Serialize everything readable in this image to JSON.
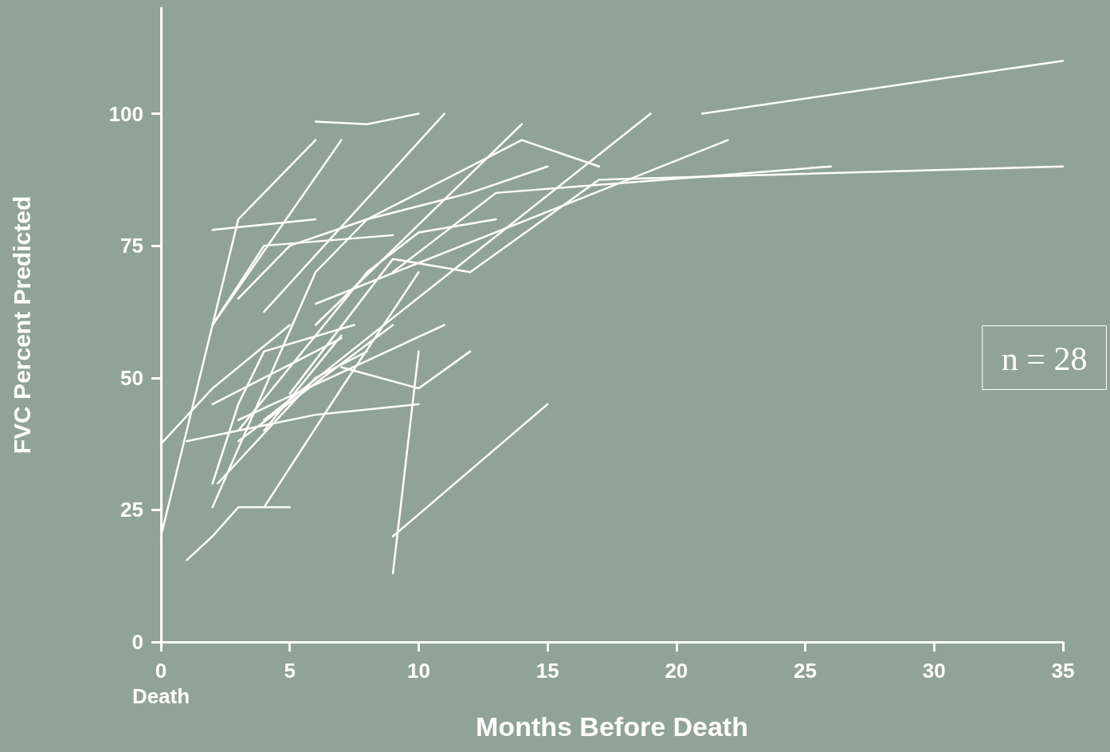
{
  "chart_data": {
    "type": "line",
    "xlabel": "Months Before Death",
    "ylabel": "FVC Percent Predicted",
    "annotations": [
      "n = 28"
    ],
    "xlim": [
      0,
      35
    ],
    "ylim": [
      0,
      120
    ],
    "xticks": [
      {
        "value": 0,
        "label": "0\nDeath"
      },
      5,
      10,
      15,
      20,
      25,
      30,
      35
    ],
    "yticks": [
      0,
      25,
      50,
      75,
      100
    ],
    "marker": "none",
    "line_style": "solid",
    "series": [
      {
        "color": "#ffffff",
        "x": [
          21,
          35
        ],
        "values": [
          100,
          110
        ]
      },
      {
        "color": "#ffffff",
        "x": [
          0,
          2,
          5
        ],
        "values": [
          37.5,
          48,
          60
        ]
      },
      {
        "color": "#ffffff",
        "x": [
          0,
          2,
          3,
          6
        ],
        "values": [
          20,
          60,
          80,
          95
        ]
      },
      {
        "color": "#ffffff",
        "x": [
          2,
          6
        ],
        "values": [
          78,
          80
        ]
      },
      {
        "color": "#ffffff",
        "x": [
          2,
          7
        ],
        "values": [
          60,
          95
        ]
      },
      {
        "color": "#ffffff",
        "x": [
          2,
          4,
          9
        ],
        "values": [
          60,
          75,
          77
        ]
      },
      {
        "color": "#ffffff",
        "x": [
          3,
          5,
          8,
          14,
          17
        ],
        "values": [
          65,
          75,
          80,
          95,
          90
        ]
      },
      {
        "color": "#ffffff",
        "x": [
          4,
          11
        ],
        "values": [
          62.5,
          100
        ]
      },
      {
        "color": "#ffffff",
        "x": [
          6,
          8,
          10
        ],
        "values": [
          98.5,
          98,
          100
        ]
      },
      {
        "color": "#ffffff",
        "x": [
          1,
          2,
          3,
          5
        ],
        "values": [
          15.5,
          20,
          25.5,
          25.5
        ]
      },
      {
        "color": "#ffffff",
        "x": [
          4,
          7,
          10
        ],
        "values": [
          25.5,
          48,
          70
        ]
      },
      {
        "color": "#ffffff",
        "x": [
          1,
          3,
          6,
          10
        ],
        "values": [
          38,
          40,
          43,
          45
        ]
      },
      {
        "color": "#ffffff",
        "x": [
          9,
          10
        ],
        "values": [
          13,
          55
        ]
      },
      {
        "color": "#ffffff",
        "x": [
          9,
          15
        ],
        "values": [
          20,
          45
        ]
      },
      {
        "color": "#ffffff",
        "x": [
          7,
          10,
          12
        ],
        "values": [
          52,
          48,
          55
        ]
      },
      {
        "color": "#ffffff",
        "x": [
          2,
          7
        ],
        "values": [
          45,
          57.5
        ]
      },
      {
        "color": "#ffffff",
        "x": [
          2,
          3,
          4,
          7.5
        ],
        "values": [
          30,
          45,
          55,
          60
        ]
      },
      {
        "color": "#ffffff",
        "x": [
          2,
          6,
          8,
          12,
          15
        ],
        "values": [
          25.5,
          70,
          80,
          85,
          90
        ]
      },
      {
        "color": "#ffffff",
        "x": [
          3,
          9
        ],
        "values": [
          38,
          60
        ]
      },
      {
        "color": "#ffffff",
        "x": [
          6,
          14
        ],
        "values": [
          60,
          98
        ]
      },
      {
        "color": "#ffffff",
        "x": [
          3,
          8,
          10,
          13
        ],
        "values": [
          40,
          70,
          77.5,
          80
        ]
      },
      {
        "color": "#ffffff",
        "x": [
          5,
          9,
          12,
          17,
          35
        ],
        "values": [
          47,
          72.5,
          70,
          87.5,
          90
        ]
      },
      {
        "color": "#ffffff",
        "x": [
          9,
          13,
          26
        ],
        "values": [
          70,
          85,
          90
        ]
      },
      {
        "color": "#ffffff",
        "x": [
          6,
          22
        ],
        "values": [
          64,
          95
        ]
      },
      {
        "color": "#ffffff",
        "x": [
          4,
          19
        ],
        "values": [
          42,
          100
        ]
      },
      {
        "color": "#ffffff",
        "x": [
          2.2,
          6,
          8
        ],
        "values": [
          30,
          50,
          55
        ]
      },
      {
        "color": "#ffffff",
        "x": [
          4,
          7
        ],
        "values": [
          40,
          58
        ]
      },
      {
        "color": "#ffffff",
        "x": [
          3,
          11
        ],
        "values": [
          42,
          60
        ]
      }
    ]
  }
}
